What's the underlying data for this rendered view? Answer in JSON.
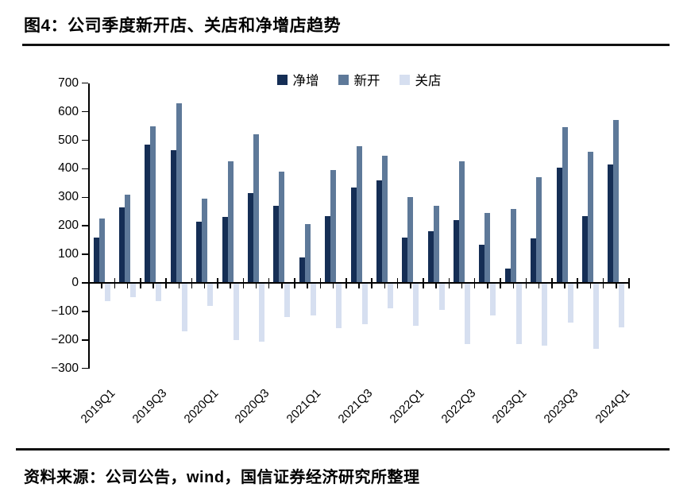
{
  "title": "图4：公司季度新开店、关店和净增店趋势",
  "footer": {
    "source": "资料来源：公司公告，wind，国信证券经济研究所整理"
  },
  "legend": {
    "items": [
      "净增",
      "新开",
      "关店"
    ]
  },
  "colors": {
    "net": "#152E55",
    "open": "#5E7999",
    "closed": "#D6DFF0",
    "axis": "#000000"
  },
  "chart_data": {
    "type": "bar",
    "title": "公司季度新开店、关店和净增店趋势",
    "categories": [
      "2019Q1",
      "2019Q2",
      "2019Q3",
      "2019Q4",
      "2020Q1",
      "2020Q2",
      "2020Q3",
      "2020Q4",
      "2021Q1",
      "2021Q2",
      "2021Q3",
      "2021Q4",
      "2022Q1",
      "2022Q2",
      "2022Q3",
      "2022Q4",
      "2023Q1",
      "2023Q2",
      "2023Q3",
      "2023Q4",
      "2024Q1"
    ],
    "x_tick_labels": [
      "2019Q1",
      "2019Q3",
      "2020Q1",
      "2020Q3",
      "2021Q1",
      "2021Q3",
      "2022Q1",
      "2022Q3",
      "2023Q1",
      "2023Q3",
      "2024Q1"
    ],
    "series": [
      {
        "name": "净增",
        "color": "#152E55",
        "values": [
          160,
          265,
          485,
          465,
          215,
          230,
          315,
          270,
          90,
          235,
          335,
          360,
          160,
          180,
          220,
          135,
          50,
          155,
          405,
          235,
          415
        ]
      },
      {
        "name": "新开",
        "color": "#5E7999",
        "values": [
          225,
          310,
          550,
          630,
          295,
          425,
          520,
          390,
          205,
          395,
          480,
          445,
          300,
          270,
          425,
          245,
          260,
          370,
          545,
          460,
          570
        ]
      },
      {
        "name": "关店",
        "color": "#D6DFF0",
        "values": [
          -65,
          -50,
          -65,
          -170,
          -80,
          -200,
          -205,
          -120,
          -115,
          -160,
          -145,
          -90,
          -150,
          -95,
          -215,
          -115,
          -215,
          -220,
          -140,
          -230,
          -155
        ]
      }
    ],
    "xlabel": "",
    "ylabel": "",
    "ylim": [
      -300,
      700
    ],
    "y_step": 100,
    "grid": false,
    "legend_position": "top-center"
  }
}
